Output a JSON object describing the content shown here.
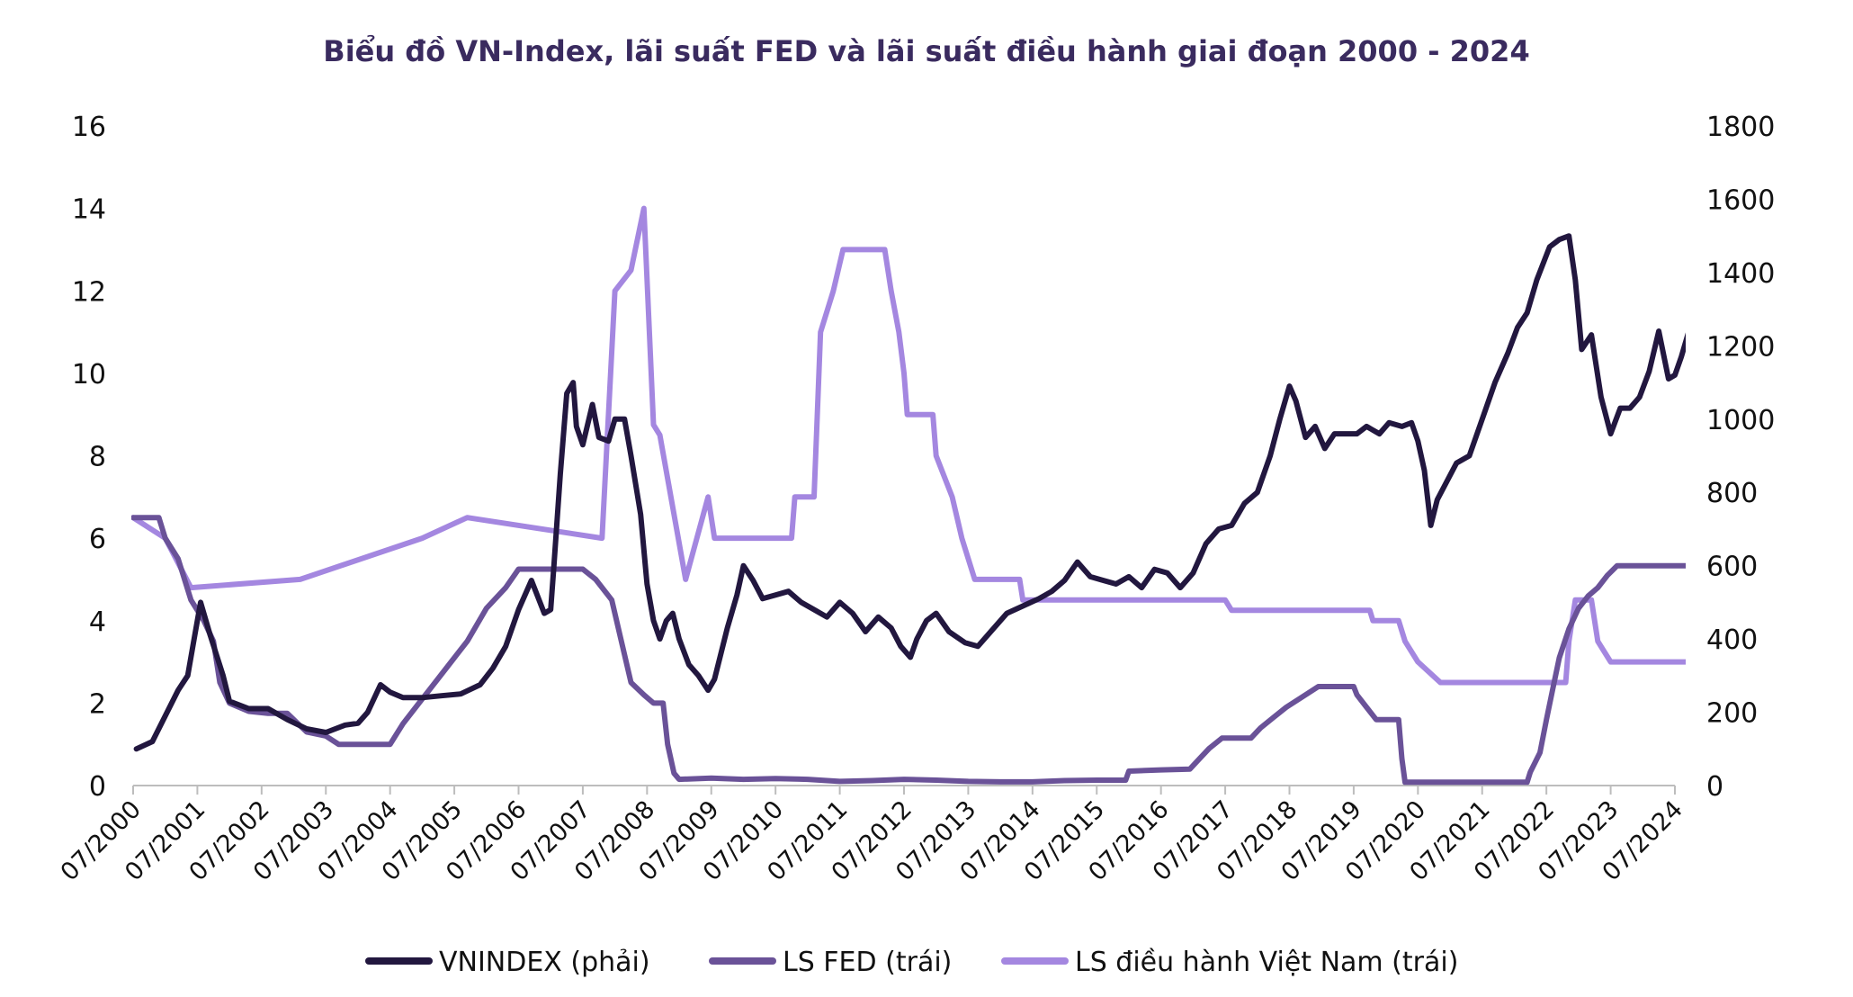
{
  "chart_data": {
    "type": "line",
    "title": "Biểu đồ VN-Index, lãi suất FED và lãi suất điều hành giai đoạn 2000 - 2024",
    "x_ticks": [
      "07/2000",
      "07/2001",
      "07/2002",
      "07/2003",
      "07/2004",
      "07/2005",
      "07/2006",
      "07/2007",
      "07/2008",
      "07/2009",
      "07/2010",
      "07/2011",
      "07/2012",
      "07/2013",
      "07/2014",
      "07/2015",
      "07/2016",
      "07/2017",
      "07/2018",
      "07/2019",
      "07/2020",
      "07/2021",
      "07/2022",
      "07/2023",
      "07/2024"
    ],
    "x_range": [
      2000.5,
      2024.5
    ],
    "y_left": {
      "range": [
        0,
        16
      ],
      "ticks": [
        "0",
        "2",
        "4",
        "6",
        "8",
        "10",
        "12",
        "14",
        "16"
      ]
    },
    "y_right": {
      "range": [
        0,
        1800
      ],
      "ticks": [
        "0",
        "200",
        "400",
        "600",
        "800",
        "1000",
        "1200",
        "1400",
        "1600",
        "1800"
      ]
    },
    "grid": false,
    "legend_position": "bottom",
    "series": [
      {
        "name": "VNINDEX (phải)",
        "axis": "right",
        "color": "#22173f",
        "points": [
          [
            2000.55,
            100
          ],
          [
            2000.8,
            120
          ],
          [
            2001.0,
            190
          ],
          [
            2001.2,
            260
          ],
          [
            2001.35,
            300
          ],
          [
            2001.45,
            400
          ],
          [
            2001.55,
            500
          ],
          [
            2001.7,
            410
          ],
          [
            2001.9,
            300
          ],
          [
            2002.0,
            230
          ],
          [
            2002.3,
            210
          ],
          [
            2002.6,
            210
          ],
          [
            2002.9,
            180
          ],
          [
            2003.2,
            155
          ],
          [
            2003.5,
            145
          ],
          [
            2003.8,
            165
          ],
          [
            2004.0,
            170
          ],
          [
            2004.15,
            200
          ],
          [
            2004.35,
            275
          ],
          [
            2004.5,
            255
          ],
          [
            2004.7,
            240
          ],
          [
            2005.0,
            240
          ],
          [
            2005.3,
            245
          ],
          [
            2005.6,
            250
          ],
          [
            2005.9,
            275
          ],
          [
            2006.1,
            320
          ],
          [
            2006.3,
            380
          ],
          [
            2006.5,
            480
          ],
          [
            2006.7,
            560
          ],
          [
            2006.9,
            470
          ],
          [
            2007.0,
            480
          ],
          [
            2007.05,
            600
          ],
          [
            2007.15,
            850
          ],
          [
            2007.25,
            1070
          ],
          [
            2007.35,
            1100
          ],
          [
            2007.4,
            980
          ],
          [
            2007.5,
            930
          ],
          [
            2007.65,
            1040
          ],
          [
            2007.75,
            950
          ],
          [
            2007.9,
            940
          ],
          [
            2008.0,
            1000
          ],
          [
            2008.15,
            1000
          ],
          [
            2008.25,
            900
          ],
          [
            2008.4,
            740
          ],
          [
            2008.5,
            550
          ],
          [
            2008.6,
            450
          ],
          [
            2008.7,
            400
          ],
          [
            2008.8,
            450
          ],
          [
            2008.9,
            470
          ],
          [
            2009.0,
            400
          ],
          [
            2009.15,
            330
          ],
          [
            2009.3,
            300
          ],
          [
            2009.45,
            260
          ],
          [
            2009.55,
            290
          ],
          [
            2009.75,
            430
          ],
          [
            2009.9,
            520
          ],
          [
            2010.0,
            600
          ],
          [
            2010.15,
            560
          ],
          [
            2010.3,
            510
          ],
          [
            2010.5,
            520
          ],
          [
            2010.7,
            530
          ],
          [
            2010.9,
            500
          ],
          [
            2011.1,
            480
          ],
          [
            2011.3,
            460
          ],
          [
            2011.5,
            500
          ],
          [
            2011.7,
            470
          ],
          [
            2011.9,
            420
          ],
          [
            2012.1,
            460
          ],
          [
            2012.3,
            430
          ],
          [
            2012.45,
            380
          ],
          [
            2012.6,
            350
          ],
          [
            2012.7,
            400
          ],
          [
            2012.85,
            450
          ],
          [
            2013.0,
            470
          ],
          [
            2013.2,
            420
          ],
          [
            2013.45,
            390
          ],
          [
            2013.65,
            380
          ],
          [
            2013.85,
            420
          ],
          [
            2014.1,
            470
          ],
          [
            2014.35,
            490
          ],
          [
            2014.6,
            510
          ],
          [
            2014.8,
            530
          ],
          [
            2015.0,
            560
          ],
          [
            2015.2,
            610
          ],
          [
            2015.4,
            570
          ],
          [
            2015.6,
            560
          ],
          [
            2015.8,
            550
          ],
          [
            2016.0,
            570
          ],
          [
            2016.2,
            540
          ],
          [
            2016.4,
            590
          ],
          [
            2016.6,
            580
          ],
          [
            2016.8,
            540
          ],
          [
            2017.0,
            580
          ],
          [
            2017.2,
            660
          ],
          [
            2017.4,
            700
          ],
          [
            2017.6,
            710
          ],
          [
            2017.8,
            770
          ],
          [
            2018.0,
            800
          ],
          [
            2018.2,
            900
          ],
          [
            2018.35,
            1000
          ],
          [
            2018.5,
            1090
          ],
          [
            2018.6,
            1050
          ],
          [
            2018.75,
            950
          ],
          [
            2018.9,
            980
          ],
          [
            2019.05,
            920
          ],
          [
            2019.2,
            960
          ],
          [
            2019.4,
            960
          ],
          [
            2019.55,
            960
          ],
          [
            2019.7,
            980
          ],
          [
            2019.9,
            960
          ],
          [
            2020.05,
            990
          ],
          [
            2020.25,
            980
          ],
          [
            2020.4,
            990
          ],
          [
            2020.5,
            940
          ],
          [
            2020.6,
            860
          ],
          [
            2020.7,
            710
          ],
          [
            2020.8,
            780
          ],
          [
            2020.95,
            830
          ],
          [
            2021.1,
            880
          ],
          [
            2021.3,
            900
          ],
          [
            2021.5,
            1000
          ],
          [
            2021.7,
            1100
          ],
          [
            2021.9,
            1180
          ],
          [
            2022.05,
            1250
          ],
          [
            2022.2,
            1290
          ],
          [
            2022.35,
            1380
          ],
          [
            2022.55,
            1470
          ],
          [
            2022.7,
            1490
          ],
          [
            2022.85,
            1500
          ],
          [
            2022.95,
            1380
          ],
          [
            2023.05,
            1190
          ],
          [
            2023.2,
            1230
          ],
          [
            2023.35,
            1060
          ],
          [
            2023.5,
            960
          ],
          [
            2023.65,
            1030
          ],
          [
            2023.8,
            1030
          ],
          [
            2023.95,
            1060
          ],
          [
            2024.1,
            1130
          ],
          [
            2024.25,
            1240
          ],
          [
            2024.4,
            1110
          ],
          [
            2024.5,
            1120
          ],
          [
            2024.6,
            1170
          ],
          [
            2024.75,
            1260
          ],
          [
            2024.9,
            1300
          ],
          [
            2025.05,
            1280
          ],
          [
            2025.15,
            1260
          ],
          [
            2025.2,
            1270
          ]
        ]
      },
      {
        "name": "LS FED (trái)",
        "axis": "left",
        "color": "#6a5298",
        "points": [
          [
            2000.5,
            6.5
          ],
          [
            2000.9,
            6.5
          ],
          [
            2001.0,
            6.0
          ],
          [
            2001.2,
            5.5
          ],
          [
            2001.4,
            4.5
          ],
          [
            2001.6,
            4.0
          ],
          [
            2001.75,
            3.5
          ],
          [
            2001.85,
            2.5
          ],
          [
            2002.0,
            2.0
          ],
          [
            2002.3,
            1.8
          ],
          [
            2002.6,
            1.75
          ],
          [
            2002.9,
            1.75
          ],
          [
            2003.2,
            1.3
          ],
          [
            2003.5,
            1.2
          ],
          [
            2003.7,
            1.0
          ],
          [
            2003.95,
            1.0
          ],
          [
            2004.2,
            1.0
          ],
          [
            2004.5,
            1.0
          ],
          [
            2004.7,
            1.5
          ],
          [
            2004.95,
            2.0
          ],
          [
            2005.2,
            2.5
          ],
          [
            2005.45,
            3.0
          ],
          [
            2005.7,
            3.5
          ],
          [
            2006.0,
            4.3
          ],
          [
            2006.3,
            4.8
          ],
          [
            2006.5,
            5.25
          ],
          [
            2006.8,
            5.25
          ],
          [
            2007.2,
            5.25
          ],
          [
            2007.5,
            5.25
          ],
          [
            2007.7,
            5.0
          ],
          [
            2007.95,
            4.5
          ],
          [
            2008.1,
            3.5
          ],
          [
            2008.25,
            2.5
          ],
          [
            2008.45,
            2.2
          ],
          [
            2008.6,
            2.0
          ],
          [
            2008.75,
            2.0
          ],
          [
            2008.82,
            1.0
          ],
          [
            2008.92,
            0.3
          ],
          [
            2009.0,
            0.15
          ],
          [
            2009.5,
            0.18
          ],
          [
            2010.0,
            0.15
          ],
          [
            2010.5,
            0.17
          ],
          [
            2011.0,
            0.15
          ],
          [
            2011.5,
            0.1
          ],
          [
            2012.0,
            0.12
          ],
          [
            2012.5,
            0.15
          ],
          [
            2013.0,
            0.13
          ],
          [
            2013.5,
            0.1
          ],
          [
            2014.0,
            0.09
          ],
          [
            2014.5,
            0.09
          ],
          [
            2015.0,
            0.12
          ],
          [
            2015.5,
            0.13
          ],
          [
            2015.95,
            0.13
          ],
          [
            2016.0,
            0.35
          ],
          [
            2016.5,
            0.38
          ],
          [
            2016.95,
            0.4
          ],
          [
            2017.1,
            0.65
          ],
          [
            2017.25,
            0.9
          ],
          [
            2017.45,
            1.15
          ],
          [
            2017.9,
            1.15
          ],
          [
            2018.05,
            1.4
          ],
          [
            2018.25,
            1.65
          ],
          [
            2018.45,
            1.9
          ],
          [
            2018.7,
            2.15
          ],
          [
            2018.95,
            2.4
          ],
          [
            2019.5,
            2.4
          ],
          [
            2019.55,
            2.2
          ],
          [
            2019.7,
            1.9
          ],
          [
            2019.85,
            1.6
          ],
          [
            2020.2,
            1.6
          ],
          [
            2020.25,
            0.65
          ],
          [
            2020.3,
            0.08
          ],
          [
            2021.0,
            0.08
          ],
          [
            2022.0,
            0.08
          ],
          [
            2022.2,
            0.08
          ],
          [
            2022.25,
            0.33
          ],
          [
            2022.4,
            0.8
          ],
          [
            2022.5,
            1.6
          ],
          [
            2022.6,
            2.35
          ],
          [
            2022.7,
            3.1
          ],
          [
            2022.85,
            3.8
          ],
          [
            2023.0,
            4.3
          ],
          [
            2023.15,
            4.6
          ],
          [
            2023.3,
            4.8
          ],
          [
            2023.45,
            5.1
          ],
          [
            2023.6,
            5.33
          ],
          [
            2024.0,
            5.33
          ],
          [
            2024.5,
            5.33
          ],
          [
            2025.2,
            5.33
          ]
        ]
      },
      {
        "name": "LS điều hành Việt Nam (trái)",
        "axis": "left",
        "color": "#a487e0",
        "points": [
          [
            2000.5,
            6.5
          ],
          [
            2001.0,
            6.0
          ],
          [
            2001.2,
            5.4
          ],
          [
            2001.4,
            4.8
          ],
          [
            2003.1,
            5.0
          ],
          [
            2005.0,
            6.0
          ],
          [
            2005.7,
            6.5
          ],
          [
            2007.8,
            6.0
          ],
          [
            2008.0,
            12.0
          ],
          [
            2008.25,
            12.5
          ],
          [
            2008.45,
            14.0
          ],
          [
            2008.6,
            8.75
          ],
          [
            2008.7,
            8.5
          ],
          [
            2009.1,
            5.0
          ],
          [
            2009.45,
            7.0
          ],
          [
            2009.55,
            6.0
          ],
          [
            2010.75,
            6.0
          ],
          [
            2010.8,
            7.0
          ],
          [
            2011.1,
            7.0
          ],
          [
            2011.2,
            11.0
          ],
          [
            2011.4,
            12.0
          ],
          [
            2011.55,
            13.0
          ],
          [
            2012.2,
            13.0
          ],
          [
            2012.3,
            12.0
          ],
          [
            2012.42,
            11.0
          ],
          [
            2012.5,
            10.0
          ],
          [
            2012.55,
            9.0
          ],
          [
            2012.95,
            9.0
          ],
          [
            2013.0,
            8.0
          ],
          [
            2013.25,
            7.0
          ],
          [
            2013.4,
            6.0
          ],
          [
            2013.6,
            5.0
          ],
          [
            2014.3,
            5.0
          ],
          [
            2014.35,
            4.5
          ],
          [
            2017.5,
            4.5
          ],
          [
            2017.6,
            4.25
          ],
          [
            2019.75,
            4.25
          ],
          [
            2019.8,
            4.0
          ],
          [
            2020.2,
            4.0
          ],
          [
            2020.3,
            3.5
          ],
          [
            2020.5,
            3.0
          ],
          [
            2020.85,
            2.5
          ],
          [
            2022.8,
            2.5
          ],
          [
            2022.85,
            3.5
          ],
          [
            2022.95,
            4.5
          ],
          [
            2023.2,
            4.5
          ],
          [
            2023.3,
            3.5
          ],
          [
            2023.5,
            3.0
          ],
          [
            2025.2,
            3.0
          ]
        ]
      }
    ]
  }
}
